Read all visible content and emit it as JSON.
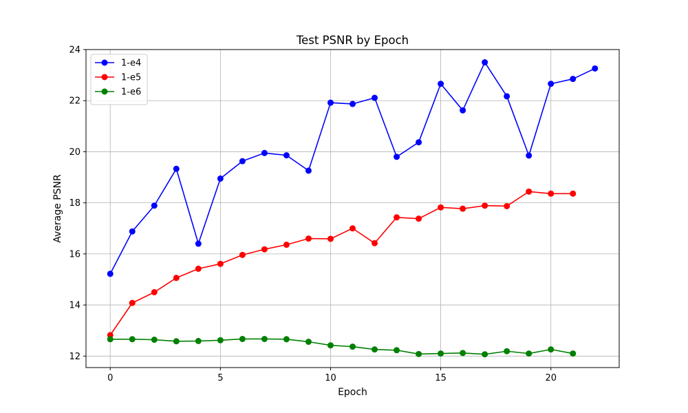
{
  "chart_data": {
    "type": "line",
    "title": "Test PSNR by Epoch",
    "xlabel": "Epoch",
    "ylabel": "Average PSNR",
    "xlim": [
      -1.1,
      23.1
    ],
    "ylim": [
      11.55,
      24.0
    ],
    "xticks": [
      0,
      5,
      10,
      15,
      20
    ],
    "yticks": [
      12,
      14,
      16,
      18,
      20,
      22,
      24
    ],
    "grid": true,
    "legend_position": "upper-left",
    "series": [
      {
        "name": "1-e4",
        "color": "#0000ff",
        "x": [
          0,
          1,
          2,
          3,
          4,
          5,
          6,
          7,
          8,
          9,
          10,
          11,
          12,
          13,
          14,
          15,
          16,
          17,
          18,
          19,
          20,
          21,
          22
        ],
        "y": [
          15.22,
          16.88,
          17.89,
          19.33,
          16.4,
          18.95,
          19.63,
          19.95,
          19.86,
          19.26,
          21.92,
          21.87,
          22.11,
          19.8,
          20.37,
          22.66,
          21.62,
          23.5,
          22.17,
          19.85,
          22.66,
          22.85,
          23.26
        ]
      },
      {
        "name": "1-e5",
        "color": "#ff0000",
        "x": [
          0,
          1,
          2,
          3,
          4,
          5,
          6,
          7,
          8,
          9,
          10,
          11,
          12,
          13,
          14,
          15,
          16,
          17,
          18,
          19,
          20,
          21
        ],
        "y": [
          12.82,
          14.08,
          14.5,
          15.06,
          15.42,
          15.61,
          15.96,
          16.18,
          16.36,
          16.6,
          16.59,
          17.0,
          16.42,
          17.43,
          17.38,
          17.82,
          17.77,
          17.89,
          17.87,
          18.44,
          18.36,
          18.36
        ]
      },
      {
        "name": "1-e6",
        "color": "#008000",
        "x": [
          0,
          1,
          2,
          3,
          4,
          5,
          6,
          7,
          8,
          9,
          10,
          11,
          12,
          13,
          14,
          15,
          16,
          17,
          18,
          19,
          20,
          21
        ],
        "y": [
          12.66,
          12.66,
          12.64,
          12.58,
          12.59,
          12.62,
          12.67,
          12.67,
          12.66,
          12.56,
          12.42,
          12.37,
          12.26,
          12.23,
          12.08,
          12.1,
          12.12,
          12.07,
          12.19,
          12.1,
          12.26,
          12.1
        ]
      }
    ]
  }
}
